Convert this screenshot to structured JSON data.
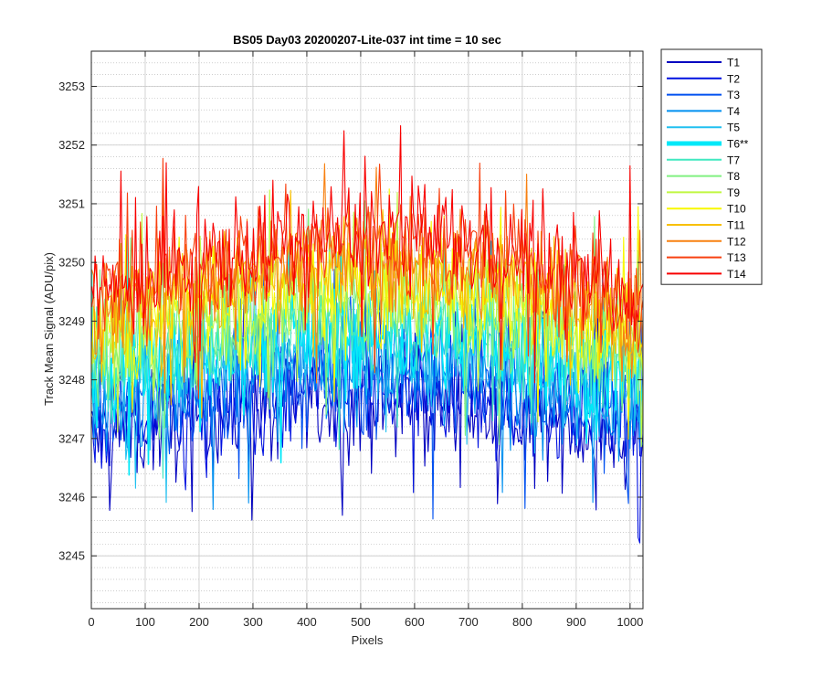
{
  "chart_data": {
    "type": "line",
    "title": "BS05 Day03 20200207-Lite-037 int time = 10 sec",
    "xlabel": "Pixels",
    "ylabel": "Track Mean Signal (ADU/pix)",
    "xlim": [
      0,
      1024
    ],
    "ylim": [
      3244.1,
      3253.6
    ],
    "x_ticks": [
      0,
      100,
      200,
      300,
      400,
      500,
      600,
      700,
      800,
      900,
      1000
    ],
    "x_tick_labels": [
      "0",
      "100",
      "200",
      "300",
      "400",
      "500",
      "600",
      "700",
      "800",
      "900",
      "1000"
    ],
    "y_ticks": [
      3245,
      3246,
      3247,
      3248,
      3249,
      3250,
      3251,
      3252,
      3253
    ],
    "y_tick_labels": [
      "3245",
      "3246",
      "3247",
      "3248",
      "3249",
      "3250",
      "3251",
      "3252",
      "3253"
    ],
    "minor_y_step": 0.2,
    "grid": true,
    "legend_position": "outside-right-top",
    "highlighted_series": "T6**",
    "series_stats": {
      "description": "each track is a noisy curve over pixels 1..1024; listed values are the approximate central mean level (ADU/pix) and the typical peak-to-peak noise amplitude",
      "x_start": 1,
      "x_end": 1024
    },
    "series": [
      {
        "name": "T1",
        "color": "#0000c0",
        "mean_edge": 3247.0,
        "mean_center": 3247.6,
        "noise": 1.6
      },
      {
        "name": "T2",
        "color": "#0010e0",
        "mean_edge": 3247.2,
        "mean_center": 3247.8,
        "noise": 1.6
      },
      {
        "name": "T3",
        "color": "#0050f0",
        "mean_edge": 3247.4,
        "mean_center": 3248.0,
        "noise": 1.6
      },
      {
        "name": "T4",
        "color": "#0090f0",
        "mean_edge": 3247.6,
        "mean_center": 3248.3,
        "noise": 1.6
      },
      {
        "name": "T5",
        "color": "#20c0f0",
        "mean_edge": 3247.8,
        "mean_center": 3248.5,
        "noise": 1.6
      },
      {
        "name": "T6**",
        "color": "#00e8f8",
        "mean_edge": 3248.0,
        "mean_center": 3248.8,
        "noise": 1.6
      },
      {
        "name": "T7",
        "color": "#40e8c0",
        "mean_edge": 3248.2,
        "mean_center": 3249.0,
        "noise": 1.6
      },
      {
        "name": "T8",
        "color": "#80f080",
        "mean_edge": 3248.4,
        "mean_center": 3249.2,
        "noise": 1.6
      },
      {
        "name": "T9",
        "color": "#c0f840",
        "mean_edge": 3248.6,
        "mean_center": 3249.4,
        "noise": 1.6
      },
      {
        "name": "T10",
        "color": "#f8f800",
        "mean_edge": 3248.8,
        "mean_center": 3249.7,
        "noise": 1.6
      },
      {
        "name": "T11",
        "color": "#f8c000",
        "mean_edge": 3249.0,
        "mean_center": 3249.9,
        "noise": 1.6
      },
      {
        "name": "T12",
        "color": "#f88010",
        "mean_edge": 3249.2,
        "mean_center": 3250.1,
        "noise": 1.6
      },
      {
        "name": "T13",
        "color": "#f84010",
        "mean_edge": 3249.3,
        "mean_center": 3250.3,
        "noise": 1.6
      },
      {
        "name": "T14",
        "color": "#f80000",
        "mean_edge": 3249.4,
        "mean_center": 3250.5,
        "noise": 1.6
      }
    ]
  }
}
